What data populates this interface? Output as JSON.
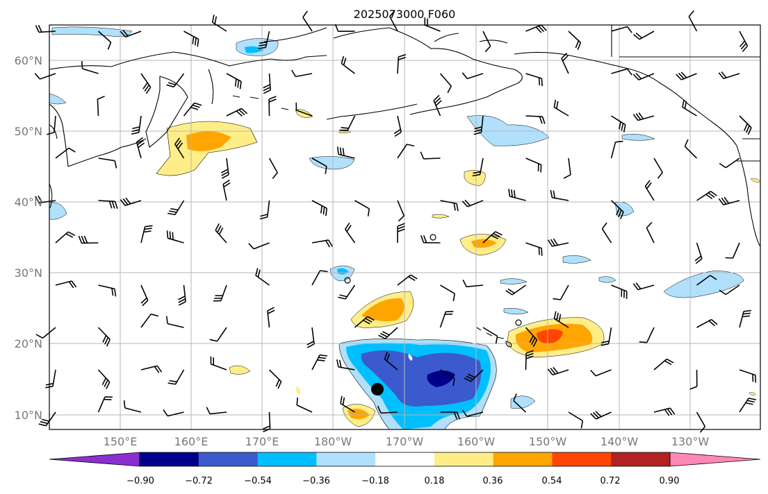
{
  "title": "2025073000 F060",
  "lat_labels": [
    "60°N",
    "50°N",
    "40°N",
    "30°N",
    "20°N",
    "10°N"
  ],
  "lon_labels": [
    "150°E",
    "160°E",
    "170°E",
    "180°W",
    "170°W",
    "160°W",
    "150°W",
    "140°W",
    "130°W"
  ],
  "colorbar": {
    "colors": [
      "#8b2fd0",
      "#00008b",
      "#3a5acd",
      "#00bfff",
      "#b0e0fc",
      "#ffffff",
      "#ffee88",
      "#ffa500",
      "#ff4500",
      "#b22222",
      "#ff88b4"
    ],
    "labels": [
      "−0.90",
      "−0.72",
      "−0.54",
      "−0.36",
      "−0.18",
      "0.18",
      "0.36",
      "0.54",
      "0.72",
      "0.90"
    ]
  },
  "markers": {
    "storm_center": "large black dot near 14°N 174°W"
  }
}
